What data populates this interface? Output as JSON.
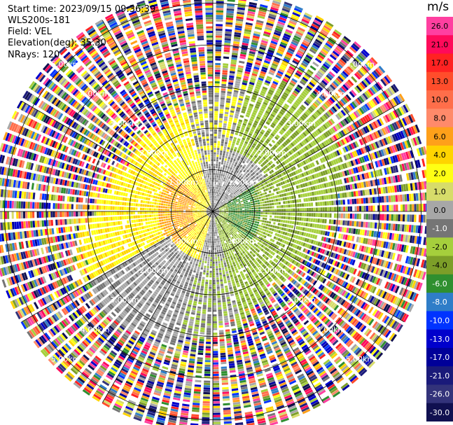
{
  "header": {
    "start_time": "Start time: 2023/09/15 09:36:39",
    "instrument": "WLS200s-181",
    "field": "Field: VEL",
    "elevation": "Elevation(deg): 35.30",
    "nrays": "NRays: 120"
  },
  "colorbar": {
    "unit": "m/s",
    "ticks": [
      "26.0",
      "21.0",
      "17.0",
      "13.0",
      "10.0",
      "8.0",
      "6.0",
      "4.0",
      "2.0",
      "1.0",
      "0.0",
      "-1.0",
      "-2.0",
      "-4.0",
      "-6.0",
      "-8.0",
      "-10.0",
      "-13.0",
      "-17.0",
      "-21.0",
      "-26.0",
      "-30.0"
    ],
    "colors": [
      "#ff3fa0",
      "#ff0a5a",
      "#ff2222",
      "#ff4d2b",
      "#ff6e4a",
      "#ff8a6a",
      "#ffa01a",
      "#ffd400",
      "#ffff14",
      "#d7dc6a",
      "#a7a7a7",
      "#757575",
      "#a5cf3c",
      "#7c9e28",
      "#2f8f2f",
      "#2f7dc8",
      "#0033ff",
      "#0000cc",
      "#000099",
      "#1a1a7a",
      "#33337a",
      "#101050"
    ]
  },
  "chart_data": {
    "type": "heatmap",
    "title": "",
    "projection": "polar (PPI)",
    "field": "VEL",
    "units": "m/s",
    "nrays": 120,
    "range_ring_labels_km": [
      "1.00km",
      "2.00km",
      "3.00km",
      "4.00km",
      "5.00km"
    ],
    "range_rings_km": [
      1,
      2,
      3,
      4,
      5
    ],
    "max_range_km": 5.3,
    "ray_count": 120,
    "dominant_features": [
      {
        "sector": "west",
        "velocity_range": [
          2.0,
          6.0
        ],
        "description_label": ""
      },
      {
        "sector": "east",
        "velocity_range": [
          -6.0,
          -1.0
        ],
        "description_label": ""
      }
    ]
  }
}
